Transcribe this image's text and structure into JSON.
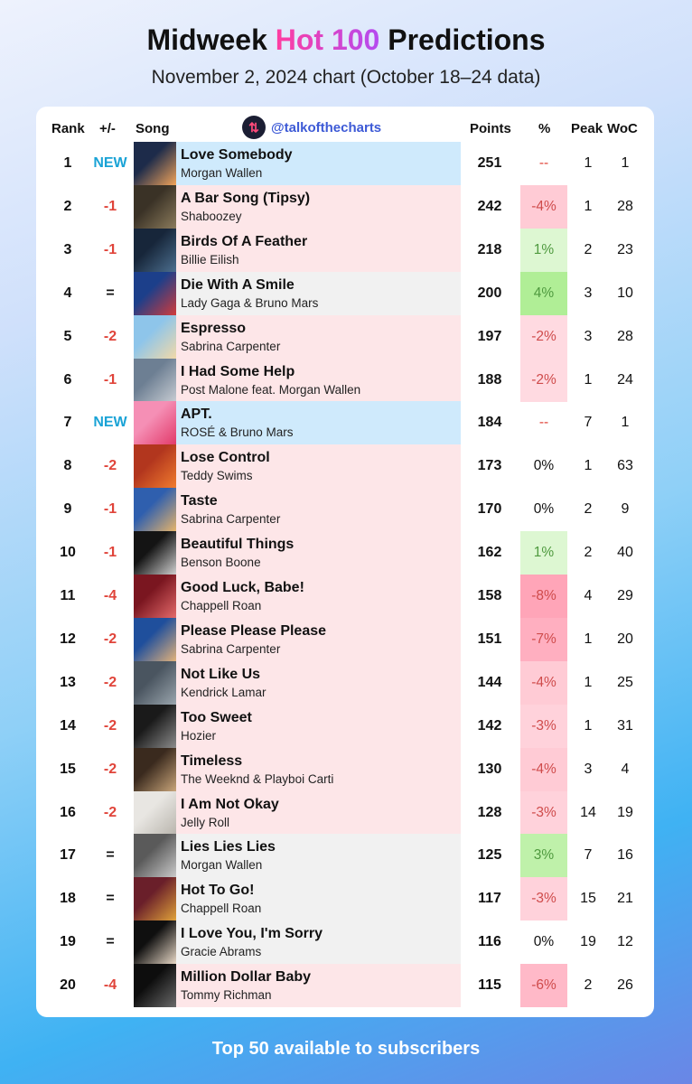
{
  "title_prefix": "Midweek ",
  "title_hot": "Hot 100",
  "title_suffix": " Predictions",
  "subtitle": "November 2, 2024 chart (October 18–24 data)",
  "headers": {
    "rank": "Rank",
    "change": "+/-",
    "song": "Song",
    "handle": "@talkofthecharts",
    "points": "Points",
    "pct": "%",
    "peak": "Peak",
    "woc": "WoC"
  },
  "footer": "Top 50 available to subscribers",
  "colors": {
    "new": "#1aa3d6",
    "down": "#e0443a",
    "pct_neg": "#cf4b4b",
    "pct_pos": "#4f9a3f",
    "row_new": "#cfeafc",
    "row_down": "#fde6e8",
    "row_same": "#f1f1f1"
  },
  "rows": [
    {
      "rank": "1",
      "change": "NEW",
      "song": "Love Somebody",
      "artist": "Morgan Wallen",
      "points": "251",
      "pct": "--",
      "peak": "1",
      "woc": "1",
      "status": "new",
      "pct_level": 0,
      "art": [
        "#1d2b4a",
        "#f2a45a"
      ]
    },
    {
      "rank": "2",
      "change": "-1",
      "song": "A Bar Song (Tipsy)",
      "artist": "Shaboozey",
      "points": "242",
      "pct": "-4%",
      "peak": "1",
      "woc": "28",
      "status": "down",
      "pct_level": -4,
      "art": [
        "#3a3226",
        "#8b7b5c"
      ]
    },
    {
      "rank": "3",
      "change": "-1",
      "song": "Birds Of A Feather",
      "artist": "Billie Eilish",
      "points": "218",
      "pct": "1%",
      "peak": "2",
      "woc": "23",
      "status": "down",
      "pct_level": 1,
      "art": [
        "#17263a",
        "#4c6f8f"
      ]
    },
    {
      "rank": "4",
      "change": "=",
      "song": "Die With A Smile",
      "artist": "Lady Gaga & Bruno Mars",
      "points": "200",
      "pct": "4%",
      "peak": "3",
      "woc": "10",
      "status": "same",
      "pct_level": 4,
      "art": [
        "#1c3f8a",
        "#d23b3b"
      ]
    },
    {
      "rank": "5",
      "change": "-2",
      "song": "Espresso",
      "artist": "Sabrina Carpenter",
      "points": "197",
      "pct": "-2%",
      "peak": "3",
      "woc": "28",
      "status": "down",
      "pct_level": -2,
      "art": [
        "#8ec5ea",
        "#f2d9a8"
      ]
    },
    {
      "rank": "6",
      "change": "-1",
      "song": "I Had Some Help",
      "artist": "Post Malone feat. Morgan Wallen",
      "points": "188",
      "pct": "-2%",
      "peak": "1",
      "woc": "24",
      "status": "down",
      "pct_level": -2,
      "art": [
        "#6d7f93",
        "#c7ccd2"
      ]
    },
    {
      "rank": "7",
      "change": "NEW",
      "song": "APT.",
      "artist": "ROSÉ & Bruno Mars",
      "points": "184",
      "pct": "--",
      "peak": "7",
      "woc": "1",
      "status": "new",
      "pct_level": 0,
      "art": [
        "#f58fb5",
        "#e23a6a"
      ]
    },
    {
      "rank": "8",
      "change": "-2",
      "song": "Lose Control",
      "artist": "Teddy Swims",
      "points": "173",
      "pct": "0%",
      "peak": "1",
      "woc": "63",
      "status": "down",
      "pct_level": 0,
      "art": [
        "#b2361e",
        "#f07b2e"
      ]
    },
    {
      "rank": "9",
      "change": "-1",
      "song": "Taste",
      "artist": "Sabrina Carpenter",
      "points": "170",
      "pct": "0%",
      "peak": "2",
      "woc": "9",
      "status": "down",
      "pct_level": 0,
      "art": [
        "#2f5fae",
        "#e6b46a"
      ]
    },
    {
      "rank": "10",
      "change": "-1",
      "song": "Beautiful Things",
      "artist": "Benson Boone",
      "points": "162",
      "pct": "1%",
      "peak": "2",
      "woc": "40",
      "status": "down",
      "pct_level": 1,
      "art": [
        "#141414",
        "#cfcfcf"
      ]
    },
    {
      "rank": "11",
      "change": "-4",
      "song": "Good Luck, Babe!",
      "artist": "Chappell Roan",
      "points": "158",
      "pct": "-8%",
      "peak": "4",
      "woc": "29",
      "status": "down",
      "pct_level": -8,
      "art": [
        "#7a1620",
        "#e46a6a"
      ]
    },
    {
      "rank": "12",
      "change": "-2",
      "song": "Please Please Please",
      "artist": "Sabrina Carpenter",
      "points": "151",
      "pct": "-7%",
      "peak": "1",
      "woc": "20",
      "status": "down",
      "pct_level": -7,
      "art": [
        "#1f4f9c",
        "#e3b27a"
      ]
    },
    {
      "rank": "13",
      "change": "-2",
      "song": "Not Like Us",
      "artist": "Kendrick Lamar",
      "points": "144",
      "pct": "-4%",
      "peak": "1",
      "woc": "25",
      "status": "down",
      "pct_level": -4,
      "art": [
        "#4a5560",
        "#9aa5ad"
      ]
    },
    {
      "rank": "14",
      "change": "-2",
      "song": "Too Sweet",
      "artist": "Hozier",
      "points": "142",
      "pct": "-3%",
      "peak": "1",
      "woc": "31",
      "status": "down",
      "pct_level": -3,
      "art": [
        "#1a1a1a",
        "#8c8c8c"
      ]
    },
    {
      "rank": "15",
      "change": "-2",
      "song": "Timeless",
      "artist": "The Weeknd & Playboi Carti",
      "points": "130",
      "pct": "-4%",
      "peak": "3",
      "woc": "4",
      "status": "down",
      "pct_level": -4,
      "art": [
        "#3a2a1e",
        "#c9a57a"
      ]
    },
    {
      "rank": "16",
      "change": "-2",
      "song": "I Am Not Okay",
      "artist": "Jelly Roll",
      "points": "128",
      "pct": "-3%",
      "peak": "14",
      "woc": "19",
      "status": "down",
      "pct_level": -3,
      "art": [
        "#e8e6e2",
        "#b9b5ad"
      ]
    },
    {
      "rank": "17",
      "change": "=",
      "song": "Lies Lies Lies",
      "artist": "Morgan Wallen",
      "points": "125",
      "pct": "3%",
      "peak": "7",
      "woc": "16",
      "status": "same",
      "pct_level": 3,
      "art": [
        "#5a5a5a",
        "#cacaca"
      ]
    },
    {
      "rank": "18",
      "change": "=",
      "song": "Hot To Go!",
      "artist": "Chappell Roan",
      "points": "117",
      "pct": "-3%",
      "peak": "15",
      "woc": "21",
      "status": "same",
      "pct_level": -3,
      "art": [
        "#6a1f2a",
        "#e0a23a"
      ]
    },
    {
      "rank": "19",
      "change": "=",
      "song": "I Love You, I'm Sorry",
      "artist": "Gracie Abrams",
      "points": "116",
      "pct": "0%",
      "peak": "19",
      "woc": "12",
      "status": "same",
      "pct_level": 0,
      "art": [
        "#0f0f0f",
        "#e8d8c6"
      ]
    },
    {
      "rank": "20",
      "change": "-4",
      "song": "Million Dollar Baby",
      "artist": "Tommy Richman",
      "points": "115",
      "pct": "-6%",
      "peak": "2",
      "woc": "26",
      "status": "down",
      "pct_level": -6,
      "art": [
        "#0d0d0d",
        "#6a6a6a"
      ]
    }
  ]
}
